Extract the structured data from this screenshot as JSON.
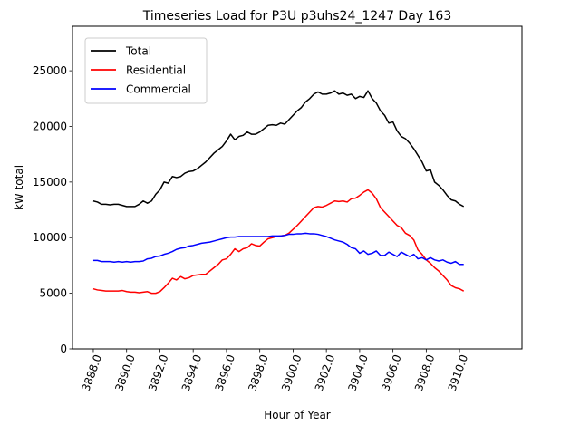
{
  "chart_data": {
    "type": "line",
    "title": "Timeseries Load for P3U p3uhs24_1247  Day 163",
    "xlabel": "Hour of Year",
    "ylabel": "kW total",
    "xlim": [
      3886.75,
      3913.75
    ],
    "ylim": [
      0,
      29000
    ],
    "xticks": [
      3888,
      3890,
      3892,
      3894,
      3896,
      3898,
      3900,
      3902,
      3904,
      3906,
      3908,
      3910
    ],
    "xtick_labels": [
      "3888.0",
      "3890.0",
      "3892.0",
      "3894.0",
      "3896.0",
      "3898.0",
      "3900.0",
      "3902.0",
      "3904.0",
      "3906.0",
      "3908.0",
      "3910.0"
    ],
    "yticks": [
      0,
      5000,
      10000,
      15000,
      20000,
      25000
    ],
    "ytick_labels": [
      "0",
      "5000",
      "10000",
      "15000",
      "20000",
      "25000"
    ],
    "legend_position": "top-left",
    "x_start": 3888,
    "x_step": 0.25,
    "series": [
      {
        "name": "Total",
        "color": "#000000",
        "values": [
          13300,
          13200,
          13000,
          13000,
          12950,
          13000,
          13000,
          12900,
          12800,
          12800,
          12800,
          13000,
          13300,
          13100,
          13300,
          13900,
          14300,
          15000,
          14900,
          15500,
          15400,
          15500,
          15800,
          15950,
          16000,
          16200,
          16500,
          16800,
          17200,
          17600,
          17900,
          18200,
          18700,
          19300,
          18800,
          19100,
          19200,
          19500,
          19300,
          19300,
          19500,
          19800,
          20100,
          20150,
          20100,
          20300,
          20200,
          20600,
          21000,
          21400,
          21700,
          22200,
          22500,
          22900,
          23100,
          22900,
          22900,
          23000,
          23200,
          22900,
          23000,
          22800,
          22900,
          22500,
          22700,
          22600,
          23200,
          22500,
          22100,
          21400,
          21000,
          20300,
          20400,
          19600,
          19100,
          18900,
          18500,
          18000,
          17400,
          16800,
          16000,
          16100,
          15000,
          14700,
          14300,
          13800,
          13400,
          13300,
          13000,
          12800
        ]
      },
      {
        "name": "Residential",
        "color": "#ff0000",
        "values": [
          5400,
          5300,
          5250,
          5200,
          5200,
          5200,
          5200,
          5250,
          5150,
          5100,
          5100,
          5050,
          5100,
          5150,
          5000,
          5000,
          5150,
          5500,
          5900,
          6350,
          6200,
          6500,
          6300,
          6400,
          6600,
          6650,
          6700,
          6700,
          7000,
          7300,
          7600,
          8000,
          8100,
          8500,
          9000,
          8750,
          9000,
          9100,
          9450,
          9300,
          9250,
          9600,
          9900,
          10000,
          10100,
          10150,
          10200,
          10400,
          10750,
          11100,
          11500,
          11900,
          12300,
          12700,
          12800,
          12750,
          12900,
          13100,
          13300,
          13250,
          13300,
          13200,
          13500,
          13550,
          13800,
          14100,
          14300,
          14000,
          13500,
          12700,
          12300,
          11900,
          11500,
          11100,
          10900,
          10400,
          10200,
          9800,
          8900,
          8500,
          8000,
          7700,
          7300,
          7000,
          6600,
          6200,
          5700,
          5500,
          5400,
          5200
        ]
      },
      {
        "name": "Commercial",
        "color": "#0000ff",
        "values": [
          7950,
          7950,
          7850,
          7850,
          7850,
          7800,
          7850,
          7800,
          7850,
          7800,
          7850,
          7850,
          7900,
          8100,
          8150,
          8300,
          8350,
          8500,
          8600,
          8750,
          8950,
          9050,
          9100,
          9250,
          9300,
          9400,
          9500,
          9550,
          9600,
          9700,
          9800,
          9900,
          10000,
          10050,
          10050,
          10100,
          10100,
          10100,
          10100,
          10100,
          10100,
          10100,
          10100,
          10150,
          10150,
          10150,
          10200,
          10300,
          10300,
          10350,
          10350,
          10400,
          10350,
          10350,
          10300,
          10200,
          10100,
          9950,
          9800,
          9700,
          9600,
          9400,
          9100,
          9000,
          8600,
          8800,
          8500,
          8600,
          8800,
          8400,
          8400,
          8700,
          8500,
          8300,
          8700,
          8500,
          8300,
          8500,
          8100,
          8200,
          8000,
          8200,
          8000,
          7900,
          8000,
          7800,
          7700,
          7850,
          7600,
          7600
        ]
      }
    ]
  }
}
